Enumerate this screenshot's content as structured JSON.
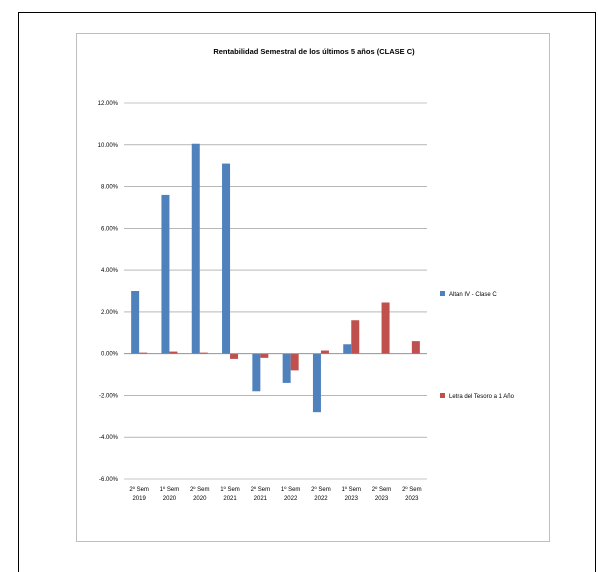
{
  "chart_data": {
    "type": "bar",
    "title": "Rentabilidad Semestral de los últimos 5 años (CLASE C)",
    "categories": [
      [
        "2º Sem",
        "2019"
      ],
      [
        "1º Sem",
        "2020"
      ],
      [
        "2º Sem",
        "2020"
      ],
      [
        "1º Sem",
        "2021"
      ],
      [
        "2º Sem",
        "2021"
      ],
      [
        "1º Sem",
        "2022"
      ],
      [
        "2º Sem",
        "2022"
      ],
      [
        "1º Sem",
        "2023"
      ],
      [
        "2º Sem",
        "2023"
      ],
      [
        "2º Sem",
        "2023"
      ]
    ],
    "series": [
      {
        "name": "Altan IV - Clase C",
        "color": "#4f81bd",
        "values": [
          3.0,
          7.6,
          10.05,
          9.1,
          -1.8,
          -1.4,
          -2.8,
          0.45,
          0,
          0
        ]
      },
      {
        "name": "Letra del Tesoro a 1 Año",
        "color": "#c0504d",
        "values": [
          0.05,
          0.1,
          0.05,
          -0.25,
          -0.2,
          -0.8,
          0.15,
          1.6,
          2.45,
          0.6
        ]
      }
    ],
    "ylim": [
      -6,
      12
    ],
    "yticks": [
      12,
      10,
      8,
      6,
      4,
      2,
      0,
      -2,
      -4,
      -6
    ],
    "ytick_labels": [
      "12.00%",
      "10.00%",
      "8.00%",
      "6.00%",
      "4.00%",
      "2.00%",
      "0.00%",
      "-2.00%",
      "-4.00%",
      "-6.00%"
    ],
    "grid": true,
    "legend": "right"
  }
}
